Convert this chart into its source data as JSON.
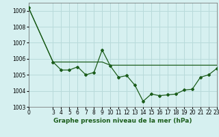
{
  "line1_x": [
    0,
    3,
    4,
    5,
    6,
    7,
    8,
    9,
    10,
    11,
    12,
    13,
    14,
    15,
    16,
    17,
    18,
    19,
    20,
    21,
    22,
    23
  ],
  "line1_y": [
    1009.2,
    1005.8,
    1005.3,
    1005.3,
    1005.5,
    1005.0,
    1005.15,
    1006.55,
    1005.55,
    1004.85,
    1004.95,
    1004.35,
    1003.35,
    1003.8,
    1003.7,
    1003.75,
    1003.8,
    1004.05,
    1004.1,
    1004.85,
    1005.0,
    1005.4
  ],
  "line2_x": [
    0,
    3,
    4,
    5,
    6,
    7,
    8,
    9,
    10,
    11,
    12,
    13,
    14,
    15,
    16,
    17,
    18,
    19,
    20,
    21,
    22,
    23
  ],
  "line2_y": [
    1009.2,
    1005.8,
    1005.8,
    1005.8,
    1005.8,
    1005.8,
    1005.8,
    1005.8,
    1005.6,
    1005.6,
    1005.6,
    1005.6,
    1005.6,
    1005.6,
    1005.6,
    1005.6,
    1005.6,
    1005.6,
    1005.6,
    1005.6,
    1005.6,
    1005.6
  ],
  "line_color": "#1a5c1a",
  "bg_color": "#d6f0f0",
  "grid_color": "#b8dada",
  "title": "Graphe pression niveau de la mer (hPa)",
  "xlim": [
    0,
    23
  ],
  "ylim": [
    1003,
    1009.5
  ],
  "yticks": [
    1003,
    1004,
    1005,
    1006,
    1007,
    1008,
    1009
  ],
  "xticks": [
    0,
    3,
    4,
    5,
    6,
    7,
    8,
    9,
    10,
    11,
    12,
    13,
    14,
    15,
    16,
    17,
    18,
    19,
    20,
    21,
    22,
    23
  ],
  "tick_fontsize": 5.5,
  "label_fontsize": 6.5
}
